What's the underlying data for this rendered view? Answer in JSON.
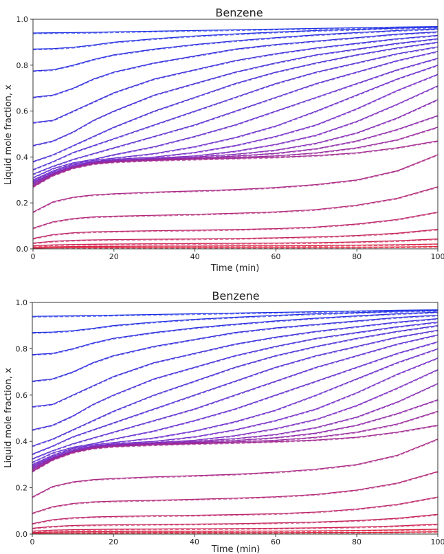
{
  "chart_data": [
    {
      "type": "line",
      "title": "Benzene",
      "xlabel": "Time (min)",
      "ylabel": "Liquid mole fraction, x",
      "xlim": [
        0,
        100
      ],
      "ylim": [
        0,
        1.0
      ],
      "x_ticks": [
        0,
        20,
        40,
        60,
        80,
        100
      ],
      "y_ticks": [
        0.0,
        0.2,
        0.4,
        0.6,
        0.8,
        1.0
      ],
      "x_tick_labels": [
        "0",
        "20",
        "40",
        "60",
        "80",
        "100"
      ],
      "y_tick_labels": [
        "0.0",
        "0.2",
        "0.4",
        "0.6",
        "0.8",
        "1.0"
      ],
      "grid": false,
      "line_styles": [
        "solid",
        "dashed"
      ],
      "x": [
        0,
        5,
        10,
        15,
        20,
        30,
        40,
        50,
        60,
        70,
        80,
        90,
        100
      ],
      "series": [
        {
          "values": [
            0.94,
            0.941,
            0.942,
            0.943,
            0.945,
            0.948,
            0.951,
            0.954,
            0.957,
            0.96,
            0.963,
            0.966,
            0.968
          ]
        },
        {
          "values": [
            0.87,
            0.872,
            0.878,
            0.888,
            0.9,
            0.915,
            0.927,
            0.936,
            0.944,
            0.951,
            0.956,
            0.961,
            0.965
          ]
        },
        {
          "values": [
            0.775,
            0.78,
            0.8,
            0.825,
            0.845,
            0.87,
            0.89,
            0.906,
            0.92,
            0.932,
            0.942,
            0.951,
            0.958
          ]
        },
        {
          "values": [
            0.66,
            0.67,
            0.7,
            0.74,
            0.77,
            0.81,
            0.84,
            0.87,
            0.89,
            0.905,
            0.92,
            0.935,
            0.945
          ]
        },
        {
          "values": [
            0.55,
            0.56,
            0.6,
            0.64,
            0.68,
            0.74,
            0.78,
            0.82,
            0.85,
            0.875,
            0.895,
            0.915,
            0.93
          ]
        },
        {
          "values": [
            0.45,
            0.47,
            0.51,
            0.56,
            0.6,
            0.67,
            0.72,
            0.77,
            0.81,
            0.845,
            0.87,
            0.895,
            0.915
          ]
        },
        {
          "values": [
            0.38,
            0.41,
            0.45,
            0.49,
            0.53,
            0.6,
            0.66,
            0.72,
            0.77,
            0.81,
            0.845,
            0.875,
            0.9
          ]
        },
        {
          "values": [
            0.345,
            0.38,
            0.42,
            0.45,
            0.48,
            0.54,
            0.6,
            0.66,
            0.72,
            0.77,
            0.81,
            0.85,
            0.88
          ]
        },
        {
          "values": [
            0.325,
            0.36,
            0.39,
            0.415,
            0.44,
            0.49,
            0.54,
            0.6,
            0.66,
            0.72,
            0.77,
            0.82,
            0.86
          ]
        },
        {
          "values": [
            0.31,
            0.35,
            0.375,
            0.39,
            0.41,
            0.445,
            0.49,
            0.54,
            0.6,
            0.66,
            0.72,
            0.78,
            0.83
          ]
        },
        {
          "values": [
            0.3,
            0.34,
            0.37,
            0.385,
            0.395,
            0.415,
            0.445,
            0.485,
            0.535,
            0.6,
            0.67,
            0.74,
            0.8
          ]
        },
        {
          "values": [
            0.295,
            0.335,
            0.365,
            0.38,
            0.39,
            0.4,
            0.42,
            0.45,
            0.49,
            0.54,
            0.61,
            0.69,
            0.76
          ]
        },
        {
          "values": [
            0.29,
            0.33,
            0.36,
            0.378,
            0.386,
            0.395,
            0.405,
            0.425,
            0.455,
            0.495,
            0.555,
            0.63,
            0.71
          ]
        },
        {
          "values": [
            0.285,
            0.328,
            0.358,
            0.376,
            0.384,
            0.392,
            0.4,
            0.412,
            0.43,
            0.46,
            0.505,
            0.57,
            0.65
          ]
        },
        {
          "values": [
            0.28,
            0.325,
            0.356,
            0.374,
            0.382,
            0.39,
            0.396,
            0.404,
            0.416,
            0.436,
            0.47,
            0.52,
            0.58
          ]
        },
        {
          "values": [
            0.275,
            0.322,
            0.354,
            0.372,
            0.38,
            0.388,
            0.393,
            0.398,
            0.405,
            0.418,
            0.44,
            0.475,
            0.53
          ]
        },
        {
          "values": [
            0.27,
            0.32,
            0.352,
            0.37,
            0.378,
            0.385,
            0.39,
            0.394,
            0.399,
            0.406,
            0.418,
            0.44,
            0.47
          ]
        },
        {
          "values": [
            0.16,
            0.205,
            0.225,
            0.235,
            0.24,
            0.247,
            0.252,
            0.258,
            0.267,
            0.28,
            0.3,
            0.34,
            0.41
          ]
        },
        {
          "values": [
            0.09,
            0.118,
            0.132,
            0.139,
            0.142,
            0.146,
            0.15,
            0.155,
            0.161,
            0.171,
            0.19,
            0.22,
            0.27
          ]
        },
        {
          "values": [
            0.045,
            0.062,
            0.07,
            0.074,
            0.076,
            0.079,
            0.081,
            0.084,
            0.088,
            0.095,
            0.108,
            0.128,
            0.16
          ]
        },
        {
          "values": [
            0.025,
            0.033,
            0.037,
            0.039,
            0.04,
            0.042,
            0.043,
            0.045,
            0.048,
            0.052,
            0.058,
            0.068,
            0.085
          ]
        },
        {
          "values": [
            0.013,
            0.017,
            0.019,
            0.02,
            0.021,
            0.022,
            0.023,
            0.024,
            0.025,
            0.027,
            0.03,
            0.035,
            0.043
          ]
        },
        {
          "values": [
            0.007,
            0.009,
            0.01,
            0.011,
            0.011,
            0.012,
            0.012,
            0.013,
            0.013,
            0.014,
            0.016,
            0.018,
            0.021
          ]
        },
        {
          "values": [
            0.003,
            0.004,
            0.005,
            0.005,
            0.005,
            0.006,
            0.006,
            0.006,
            0.006,
            0.007,
            0.007,
            0.008,
            0.01
          ]
        }
      ],
      "colors": {
        "top": "#1a2ee6",
        "middle": "#7a2ec8",
        "bottom": "#e0223a"
      }
    },
    {
      "type": "line",
      "title": "Benzene",
      "xlabel": "Time (min)",
      "ylabel": "Liquid mole fraction, x",
      "xlim": [
        0,
        100
      ],
      "ylim": [
        0,
        1.0
      ],
      "x_ticks": [
        0,
        20,
        40,
        60,
        80,
        100
      ],
      "y_ticks": [
        0.0,
        0.2,
        0.4,
        0.6,
        0.8,
        1.0
      ],
      "x_tick_labels": [
        "0",
        "20",
        "40",
        "60",
        "80",
        "100"
      ],
      "y_tick_labels": [
        "0.0",
        "0.2",
        "0.4",
        "0.6",
        "0.8",
        "1.0"
      ],
      "grid": false,
      "line_styles": [
        "solid",
        "dashed"
      ],
      "x": [
        0,
        5,
        10,
        15,
        20,
        30,
        40,
        50,
        60,
        70,
        80,
        90,
        100
      ],
      "series": [
        {
          "values": [
            0.94,
            0.941,
            0.942,
            0.943,
            0.945,
            0.948,
            0.951,
            0.954,
            0.957,
            0.96,
            0.963,
            0.966,
            0.968
          ]
        },
        {
          "values": [
            0.87,
            0.872,
            0.878,
            0.888,
            0.9,
            0.915,
            0.927,
            0.936,
            0.944,
            0.951,
            0.956,
            0.961,
            0.965
          ]
        },
        {
          "values": [
            0.775,
            0.78,
            0.8,
            0.825,
            0.845,
            0.87,
            0.89,
            0.906,
            0.92,
            0.932,
            0.942,
            0.951,
            0.958
          ]
        },
        {
          "values": [
            0.66,
            0.67,
            0.7,
            0.74,
            0.77,
            0.81,
            0.84,
            0.87,
            0.89,
            0.905,
            0.92,
            0.935,
            0.945
          ]
        },
        {
          "values": [
            0.55,
            0.56,
            0.6,
            0.64,
            0.68,
            0.74,
            0.78,
            0.82,
            0.85,
            0.875,
            0.895,
            0.915,
            0.93
          ]
        },
        {
          "values": [
            0.45,
            0.47,
            0.51,
            0.56,
            0.6,
            0.67,
            0.72,
            0.77,
            0.81,
            0.845,
            0.87,
            0.895,
            0.915
          ]
        },
        {
          "values": [
            0.38,
            0.41,
            0.45,
            0.49,
            0.53,
            0.6,
            0.66,
            0.72,
            0.77,
            0.81,
            0.845,
            0.875,
            0.9
          ]
        },
        {
          "values": [
            0.345,
            0.38,
            0.42,
            0.45,
            0.48,
            0.54,
            0.6,
            0.66,
            0.72,
            0.77,
            0.81,
            0.85,
            0.88
          ]
        },
        {
          "values": [
            0.325,
            0.36,
            0.39,
            0.415,
            0.44,
            0.49,
            0.54,
            0.6,
            0.66,
            0.72,
            0.77,
            0.82,
            0.86
          ]
        },
        {
          "values": [
            0.31,
            0.35,
            0.375,
            0.39,
            0.41,
            0.445,
            0.49,
            0.54,
            0.6,
            0.66,
            0.72,
            0.78,
            0.83
          ]
        },
        {
          "values": [
            0.3,
            0.34,
            0.37,
            0.385,
            0.395,
            0.415,
            0.445,
            0.485,
            0.535,
            0.6,
            0.67,
            0.74,
            0.8
          ]
        },
        {
          "values": [
            0.295,
            0.335,
            0.365,
            0.38,
            0.39,
            0.4,
            0.42,
            0.45,
            0.49,
            0.54,
            0.61,
            0.69,
            0.76
          ]
        },
        {
          "values": [
            0.29,
            0.33,
            0.36,
            0.378,
            0.386,
            0.395,
            0.405,
            0.425,
            0.455,
            0.495,
            0.555,
            0.63,
            0.71
          ]
        },
        {
          "values": [
            0.285,
            0.328,
            0.358,
            0.376,
            0.384,
            0.392,
            0.4,
            0.412,
            0.43,
            0.46,
            0.505,
            0.57,
            0.65
          ]
        },
        {
          "values": [
            0.28,
            0.325,
            0.356,
            0.374,
            0.382,
            0.39,
            0.396,
            0.404,
            0.416,
            0.436,
            0.47,
            0.52,
            0.58
          ]
        },
        {
          "values": [
            0.275,
            0.322,
            0.354,
            0.372,
            0.38,
            0.388,
            0.393,
            0.398,
            0.405,
            0.418,
            0.44,
            0.475,
            0.53
          ]
        },
        {
          "values": [
            0.27,
            0.32,
            0.352,
            0.37,
            0.378,
            0.385,
            0.39,
            0.394,
            0.399,
            0.406,
            0.418,
            0.44,
            0.47
          ]
        },
        {
          "values": [
            0.16,
            0.205,
            0.225,
            0.235,
            0.24,
            0.247,
            0.252,
            0.258,
            0.267,
            0.28,
            0.3,
            0.34,
            0.41
          ]
        },
        {
          "values": [
            0.09,
            0.118,
            0.132,
            0.139,
            0.142,
            0.146,
            0.15,
            0.155,
            0.161,
            0.171,
            0.19,
            0.22,
            0.27
          ]
        },
        {
          "values": [
            0.045,
            0.062,
            0.07,
            0.074,
            0.076,
            0.079,
            0.081,
            0.084,
            0.088,
            0.095,
            0.108,
            0.128,
            0.16
          ]
        },
        {
          "values": [
            0.025,
            0.033,
            0.037,
            0.039,
            0.04,
            0.042,
            0.043,
            0.045,
            0.048,
            0.052,
            0.058,
            0.068,
            0.085
          ]
        },
        {
          "values": [
            0.013,
            0.017,
            0.019,
            0.02,
            0.021,
            0.022,
            0.023,
            0.024,
            0.025,
            0.027,
            0.03,
            0.035,
            0.043
          ]
        },
        {
          "values": [
            0.007,
            0.009,
            0.01,
            0.011,
            0.011,
            0.012,
            0.012,
            0.013,
            0.013,
            0.014,
            0.016,
            0.018,
            0.021
          ]
        },
        {
          "values": [
            0.003,
            0.004,
            0.005,
            0.005,
            0.005,
            0.006,
            0.006,
            0.006,
            0.006,
            0.007,
            0.007,
            0.008,
            0.01
          ]
        }
      ],
      "colors": {
        "top": "#1a2ee6",
        "middle": "#7a2ec8",
        "bottom": "#e0223a"
      }
    }
  ]
}
